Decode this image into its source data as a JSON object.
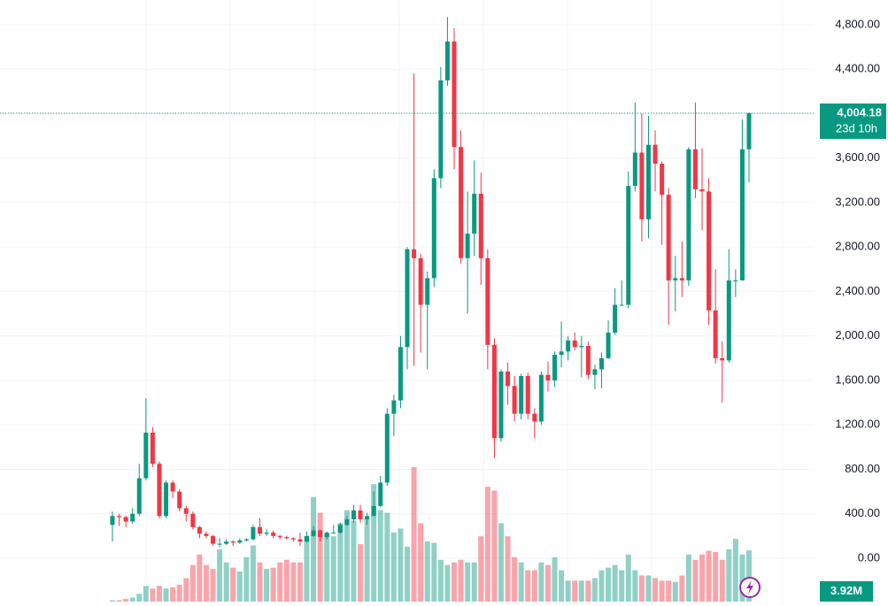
{
  "chart_data": {
    "type": "candlestick",
    "up_color": "#089981",
    "down_color": "#f23645",
    "ylim": [
      -430,
      5023
    ],
    "yticks": [
      {
        "value": 0,
        "label": "0.00"
      },
      {
        "value": 400,
        "label": "400.00"
      },
      {
        "value": 800,
        "label": "800.00"
      },
      {
        "value": 1200,
        "label": "1,200.00"
      },
      {
        "value": 1600,
        "label": "1,600.00"
      },
      {
        "value": 2000,
        "label": "2,000.00"
      },
      {
        "value": 2400,
        "label": "2,400.00"
      },
      {
        "value": 2800,
        "label": "2,800.00"
      },
      {
        "value": 3200,
        "label": "3,200.00"
      },
      {
        "value": 3600,
        "label": "3,600.00"
      },
      {
        "value": 4000,
        "label": "4,000.00"
      },
      {
        "value": 4400,
        "label": "4,400.00"
      },
      {
        "value": 4800,
        "label": "4,800.00"
      }
    ],
    "grid": true,
    "candles": [
      [
        300,
        420,
        150,
        380
      ],
      [
        380,
        400,
        290,
        370
      ],
      [
        370,
        380,
        280,
        330
      ],
      [
        330,
        450,
        310,
        400
      ],
      [
        400,
        850,
        380,
        720
      ],
      [
        720,
        1440,
        700,
        1130
      ],
      [
        1130,
        1180,
        820,
        850
      ],
      [
        850,
        870,
        360,
        380
      ],
      [
        380,
        700,
        360,
        680
      ],
      [
        680,
        700,
        540,
        600
      ],
      [
        600,
        620,
        420,
        450
      ],
      [
        450,
        470,
        330,
        400
      ],
      [
        400,
        420,
        260,
        280
      ],
      [
        280,
        290,
        180,
        220
      ],
      [
        220,
        240,
        180,
        200
      ],
      [
        200,
        210,
        110,
        130
      ],
      [
        130,
        180,
        100,
        130
      ],
      [
        130,
        170,
        120,
        150
      ],
      [
        150,
        160,
        110,
        140
      ],
      [
        140,
        180,
        130,
        160
      ],
      [
        160,
        180,
        150,
        170
      ],
      [
        170,
        300,
        160,
        280
      ],
      [
        280,
        360,
        200,
        220
      ],
      [
        220,
        260,
        200,
        230
      ],
      [
        230,
        250,
        180,
        200
      ],
      [
        200,
        210,
        170,
        190
      ],
      [
        190,
        200,
        170,
        180
      ],
      [
        180,
        190,
        150,
        170
      ],
      [
        170,
        230,
        110,
        150
      ],
      [
        150,
        240,
        140,
        200
      ],
      [
        200,
        290,
        190,
        250
      ],
      [
        250,
        260,
        150,
        190
      ],
      [
        190,
        240,
        170,
        230
      ],
      [
        230,
        300,
        220,
        230
      ],
      [
        230,
        320,
        220,
        300
      ],
      [
        300,
        380,
        290,
        350
      ],
      [
        350,
        480,
        320,
        430
      ],
      [
        430,
        480,
        320,
        350
      ],
      [
        350,
        410,
        300,
        380
      ],
      [
        380,
        600,
        380,
        470
      ],
      [
        470,
        740,
        460,
        680
      ],
      [
        680,
        1350,
        650,
        1300
      ],
      [
        1300,
        1470,
        1100,
        1420
      ],
      [
        1420,
        2000,
        1350,
        1900
      ],
      [
        1900,
        2800,
        1700,
        2780
      ],
      [
        2780,
        4360,
        1730,
        2700
      ],
      [
        2700,
        2740,
        1850,
        2280
      ],
      [
        2280,
        2580,
        1700,
        2520
      ],
      [
        2520,
        3500,
        2440,
        3420
      ],
      [
        3420,
        4420,
        3330,
        4300
      ],
      [
        4300,
        4870,
        4250,
        4650
      ],
      [
        4650,
        4770,
        3500,
        3700
      ],
      [
        3700,
        3850,
        2650,
        2700
      ],
      [
        2700,
        3300,
        2200,
        2920
      ],
      [
        2920,
        3580,
        2720,
        3280
      ],
      [
        3280,
        3470,
        2460,
        2700
      ],
      [
        2700,
        2780,
        1700,
        1920
      ],
      [
        1920,
        1980,
        900,
        1080
      ],
      [
        1080,
        1700,
        1050,
        1680
      ],
      [
        1680,
        1760,
        1380,
        1550
      ],
      [
        1550,
        1640,
        1230,
        1300
      ],
      [
        1300,
        1660,
        1250,
        1640
      ],
      [
        1640,
        1670,
        1250,
        1300
      ],
      [
        1300,
        1350,
        1080,
        1230
      ],
      [
        1230,
        1680,
        1200,
        1650
      ],
      [
        1650,
        1770,
        1500,
        1600
      ],
      [
        1600,
        1860,
        1540,
        1830
      ],
      [
        1830,
        2130,
        1720,
        1860
      ],
      [
        1860,
        2000,
        1780,
        1960
      ],
      [
        1960,
        2030,
        1870,
        1900
      ],
      [
        1900,
        2000,
        1630,
        1910
      ],
      [
        1910,
        1950,
        1610,
        1650
      ],
      [
        1650,
        1740,
        1520,
        1700
      ],
      [
        1700,
        1850,
        1530,
        1800
      ],
      [
        1800,
        2140,
        1790,
        2030
      ],
      [
        2030,
        2430,
        2010,
        2280
      ],
      [
        2280,
        2500,
        2270,
        2280
      ],
      [
        2280,
        3480,
        2250,
        3350
      ],
      [
        3350,
        4100,
        3300,
        3650
      ],
      [
        3650,
        4000,
        2850,
        3050
      ],
      [
        3050,
        3980,
        2880,
        3720
      ],
      [
        3720,
        3850,
        3300,
        3550
      ],
      [
        3550,
        3570,
        2820,
        3270
      ],
      [
        3270,
        3330,
        2100,
        2500
      ],
      [
        2500,
        2720,
        2220,
        2520
      ],
      [
        2520,
        2850,
        2350,
        2500
      ],
      [
        2500,
        3700,
        2450,
        3680
      ],
      [
        3680,
        4100,
        3240,
        3320
      ],
      [
        3320,
        3690,
        2950,
        3300
      ],
      [
        3300,
        3420,
        2100,
        2230
      ],
      [
        2230,
        2600,
        1750,
        1800
      ],
      [
        1800,
        1950,
        1400,
        1780
      ],
      [
        1780,
        2780,
        1760,
        2500
      ],
      [
        2500,
        2600,
        2350,
        2500
      ],
      [
        2500,
        3950,
        2500,
        3680
      ],
      [
        3680,
        4010,
        3380,
        4004.18
      ]
    ],
    "volume": [
      0.1,
      0.1,
      0.2,
      0.3,
      0.6,
      1.2,
      1.0,
      1.2,
      1.0,
      1.1,
      1.3,
      1.8,
      2.8,
      3.6,
      2.8,
      2.5,
      4.0,
      3.0,
      2.6,
      2.3,
      3.4,
      4.3,
      3.0,
      2.5,
      2.6,
      3.0,
      3.2,
      3.0,
      3.0,
      5.0,
      8.0,
      6.8,
      5.2,
      5.0,
      6.0,
      7.0,
      6.2,
      4.4,
      6.4,
      9.0,
      7.0,
      6.8,
      5.3,
      5.6,
      4.2,
      10.3,
      6.0,
      4.6,
      4.5,
      3.2,
      2.8,
      3.0,
      3.2,
      3.0,
      3.0,
      5.0,
      8.8,
      8.5,
      6.0,
      5.0,
      3.4,
      3.0,
      2.4,
      2.4,
      3.0,
      2.8,
      3.4,
      2.4,
      1.6,
      1.6,
      1.6,
      1.6,
      1.8,
      2.4,
      2.6,
      2.8,
      2.4,
      3.6,
      2.4,
      2.0,
      2.0,
      1.8,
      1.6,
      1.6,
      1.5,
      2.0,
      3.6,
      3.2,
      3.6,
      3.9,
      3.8,
      3.2,
      4.0,
      4.8,
      3.6,
      3.92
    ],
    "last_price_label": "4,004.18",
    "countdown": "23d 10h",
    "last_volume_label": "3.92M"
  }
}
